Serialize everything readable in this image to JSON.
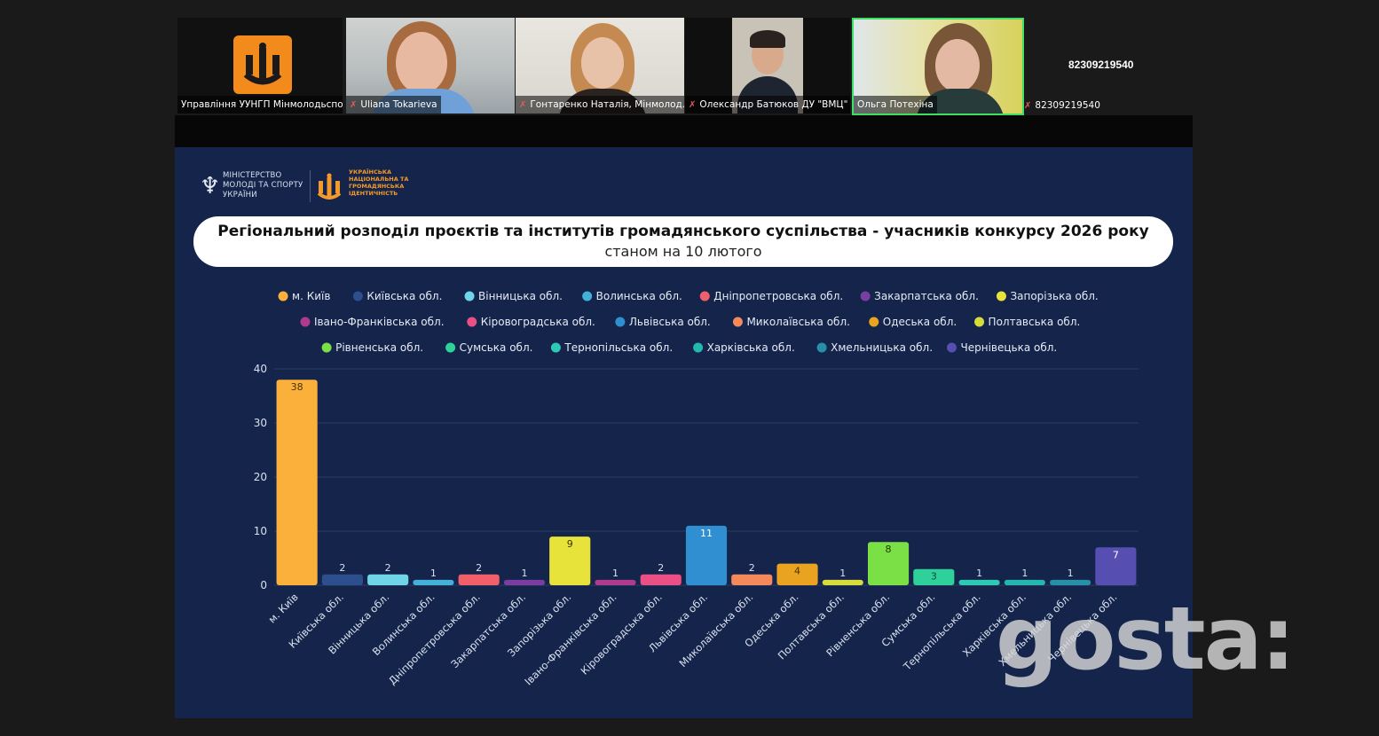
{
  "meeting": {
    "meeting_id": "82309219540",
    "participants": [
      {
        "name": "Управління УУНГП Мінмолодьспорт",
        "muted": false
      },
      {
        "name": "Uliana Tokarieva",
        "muted": true
      },
      {
        "name": "Гонтаренко Наталія, Мінмолод...",
        "muted": true
      },
      {
        "name": "Олександр Батюков ДУ \"ВМЦ\"",
        "muted": true
      },
      {
        "name": "Ольга Потехіна",
        "muted": false
      },
      {
        "name": "82309219540",
        "muted": true
      }
    ]
  },
  "slide": {
    "ministry_label": "МІНІСТЕРСТВО МОЛОДІ ТА СПОРТУ УКРАЇНИ",
    "org_label": "УКРАЇНСЬКА НАЦІОНАЛЬНА ТА ГРОМАДЯНСЬКА ІДЕНТИЧНІСТЬ",
    "title": "Регіональний розподіл проєктів та інститутів громадянського суспільства - учасників конкурсу 2026 року",
    "subtitle": "станом на 10 лютого"
  },
  "watermark": "gosta:",
  "chart_data": {
    "type": "bar",
    "title": "Регіональний розподіл проєктів та інститутів громадянського суспільства - учасників конкурсу 2026 року",
    "subtitle": "станом на 10 лютого",
    "categories": [
      "м. Київ",
      "Київська обл.",
      "Вінницька обл.",
      "Волинська обл.",
      "Дніпропетровська обл.",
      "Закарпатська обл.",
      "Запорізька обл.",
      "Івано-Франківська обл.",
      "Кіровоградська обл.",
      "Львівська обл.",
      "Миколаївська обл.",
      "Одеська обл.",
      "Полтавська обл.",
      "Рівненська обл.",
      "Сумська обл.",
      "Тернопільська обл.",
      "Харківська обл.",
      "Хмельницька обл.",
      "Чернівецька обл."
    ],
    "values": [
      38,
      2,
      2,
      1,
      2,
      1,
      9,
      1,
      2,
      11,
      2,
      4,
      1,
      8,
      3,
      1,
      1,
      1,
      7
    ],
    "colors": [
      "#fbb03b",
      "#2d4f8e",
      "#6fd6e8",
      "#42b0d8",
      "#f05f6a",
      "#7a3ea3",
      "#e8e33a",
      "#b03a8c",
      "#ea4f86",
      "#2f8fd0",
      "#f4895c",
      "#e9a321",
      "#d6dd3b",
      "#7be045",
      "#2fd19b",
      "#2ec9b4",
      "#24b7ad",
      "#2790a8",
      "#564eb0"
    ],
    "label_colors": [
      "#4a3200",
      "#ffffff",
      "#ffffff",
      "#ffffff",
      "#ffffff",
      "#ffffff",
      "#3a3500",
      "#ffffff",
      "#ffffff",
      "#ffffff",
      "#ffffff",
      "#4a3200",
      "#ffffff",
      "#1e3a00",
      "#0e4a39",
      "#ffffff",
      "#ffffff",
      "#ffffff",
      "#ffffff"
    ],
    "ylim": [
      0,
      40
    ],
    "yticks": [
      0,
      10,
      20,
      30,
      40
    ],
    "legend_position": "top",
    "grid": true
  }
}
